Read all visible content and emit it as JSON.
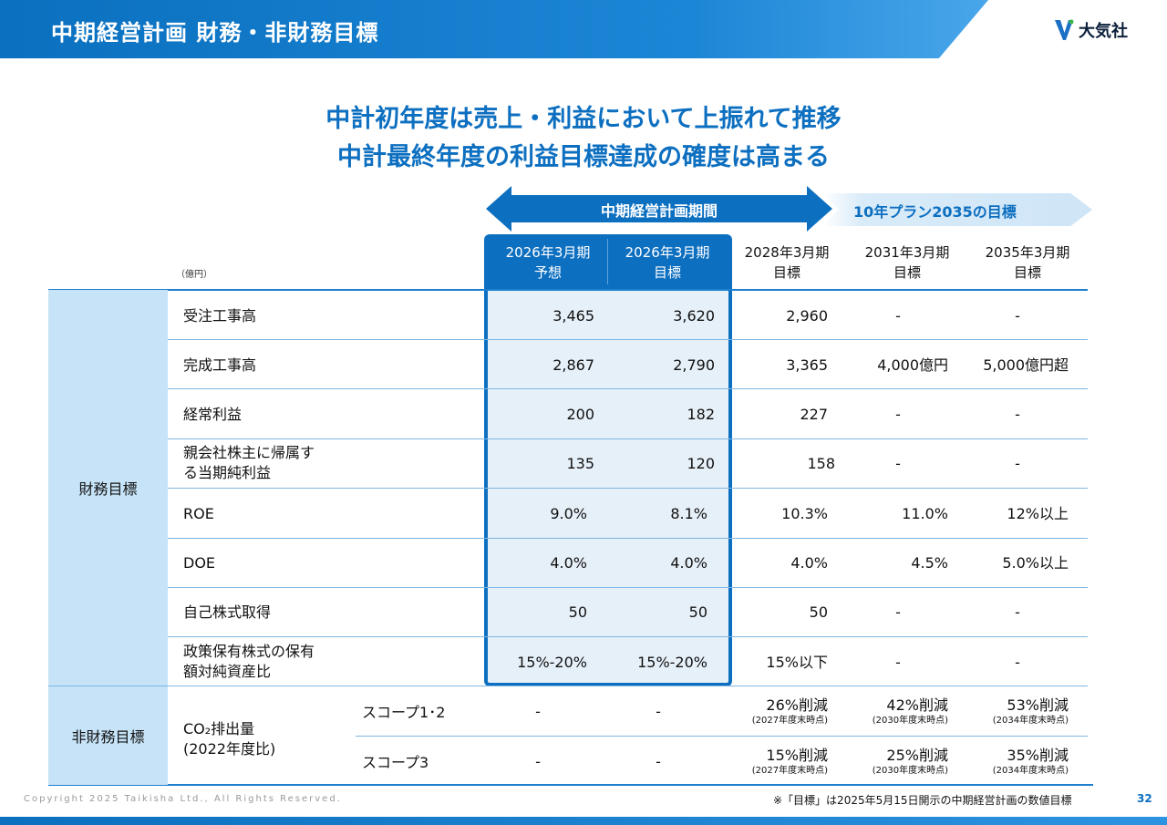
{
  "header": {
    "title": "中期経営計画 財務・非財務目標",
    "logo_text": "大気社"
  },
  "headline": {
    "line1": "中計初年度は売上・利益において上振れて推移",
    "line2": "中計最終年度の利益目標達成の確度は高まる"
  },
  "periods": {
    "mid_term": "中期経営計画期間",
    "ten_year": "10年プラン2035の目標"
  },
  "unit": "（億円）",
  "columns": [
    {
      "line1": "2026年3月期",
      "line2": "予想"
    },
    {
      "line1": "2026年3月期",
      "line2": "目標"
    },
    {
      "line1": "2028年3月期",
      "line2": "目標"
    },
    {
      "line1": "2031年3月期",
      "line2": "目標"
    },
    {
      "line1": "2035年3月期",
      "line2": "目標"
    }
  ],
  "categories": {
    "financial": "財務目標",
    "non_financial": "非財務目標"
  },
  "rows": [
    {
      "label": "受注工事高",
      "values": [
        "3,465",
        "3,620",
        "2,960",
        "-",
        "-"
      ]
    },
    {
      "label": "完成工事高",
      "values": [
        "2,867",
        "2,790",
        "3,365",
        "4,000億円",
        "5,000億円超"
      ]
    },
    {
      "label": "経常利益",
      "values": [
        "200",
        "182",
        "227",
        "-",
        "-"
      ]
    },
    {
      "label1": "親会社株主に帰属す",
      "label2": "る当期純利益",
      "values": [
        "135",
        "120",
        "158",
        "-",
        "-"
      ]
    },
    {
      "label": "ROE",
      "values": [
        "9.0%",
        "8.1%",
        "10.3%",
        "11.0%",
        "12%以上"
      ]
    },
    {
      "label": "DOE",
      "values": [
        "4.0%",
        "4.0%",
        "4.0%",
        "4.5%",
        "5.0%以上"
      ]
    },
    {
      "label": "自己株式取得",
      "values": [
        "50",
        "50",
        "50",
        "-",
        "-"
      ]
    },
    {
      "label1": "政策保有株式の保有",
      "label2": "額対純資産比",
      "values": [
        "15%-20%",
        "15%-20%",
        "15%以下",
        "-",
        "-"
      ]
    }
  ],
  "co2": {
    "label1": "CO₂排出量",
    "label2": "(2022年度比)",
    "scopes": [
      {
        "label": "スコープ1･2",
        "values": [
          "-",
          "-",
          "26%削減",
          "42%削減",
          "53%削減"
        ],
        "notes": [
          "(2027年度末時点)",
          "(2030年度末時点)",
          "(2034年度末時点)"
        ]
      },
      {
        "label": "スコープ3",
        "values": [
          "-",
          "-",
          "15%削減",
          "25%削減",
          "35%削減"
        ],
        "notes": [
          "(2027年度末時点)",
          "(2030年度末時点)",
          "(2034年度末時点)"
        ]
      }
    ]
  },
  "footer": {
    "copyright": "Copyright  2025 Taikisha Ltd., All Rights Reserved.",
    "note": "※「目標」は2025年5月15日開示の中期経営計画の数値目標",
    "page": "32"
  },
  "colors": {
    "brand_blue": "#0d6fc0",
    "category_bg": "#c6e3f7",
    "band_bg": "#e6f0f8"
  }
}
